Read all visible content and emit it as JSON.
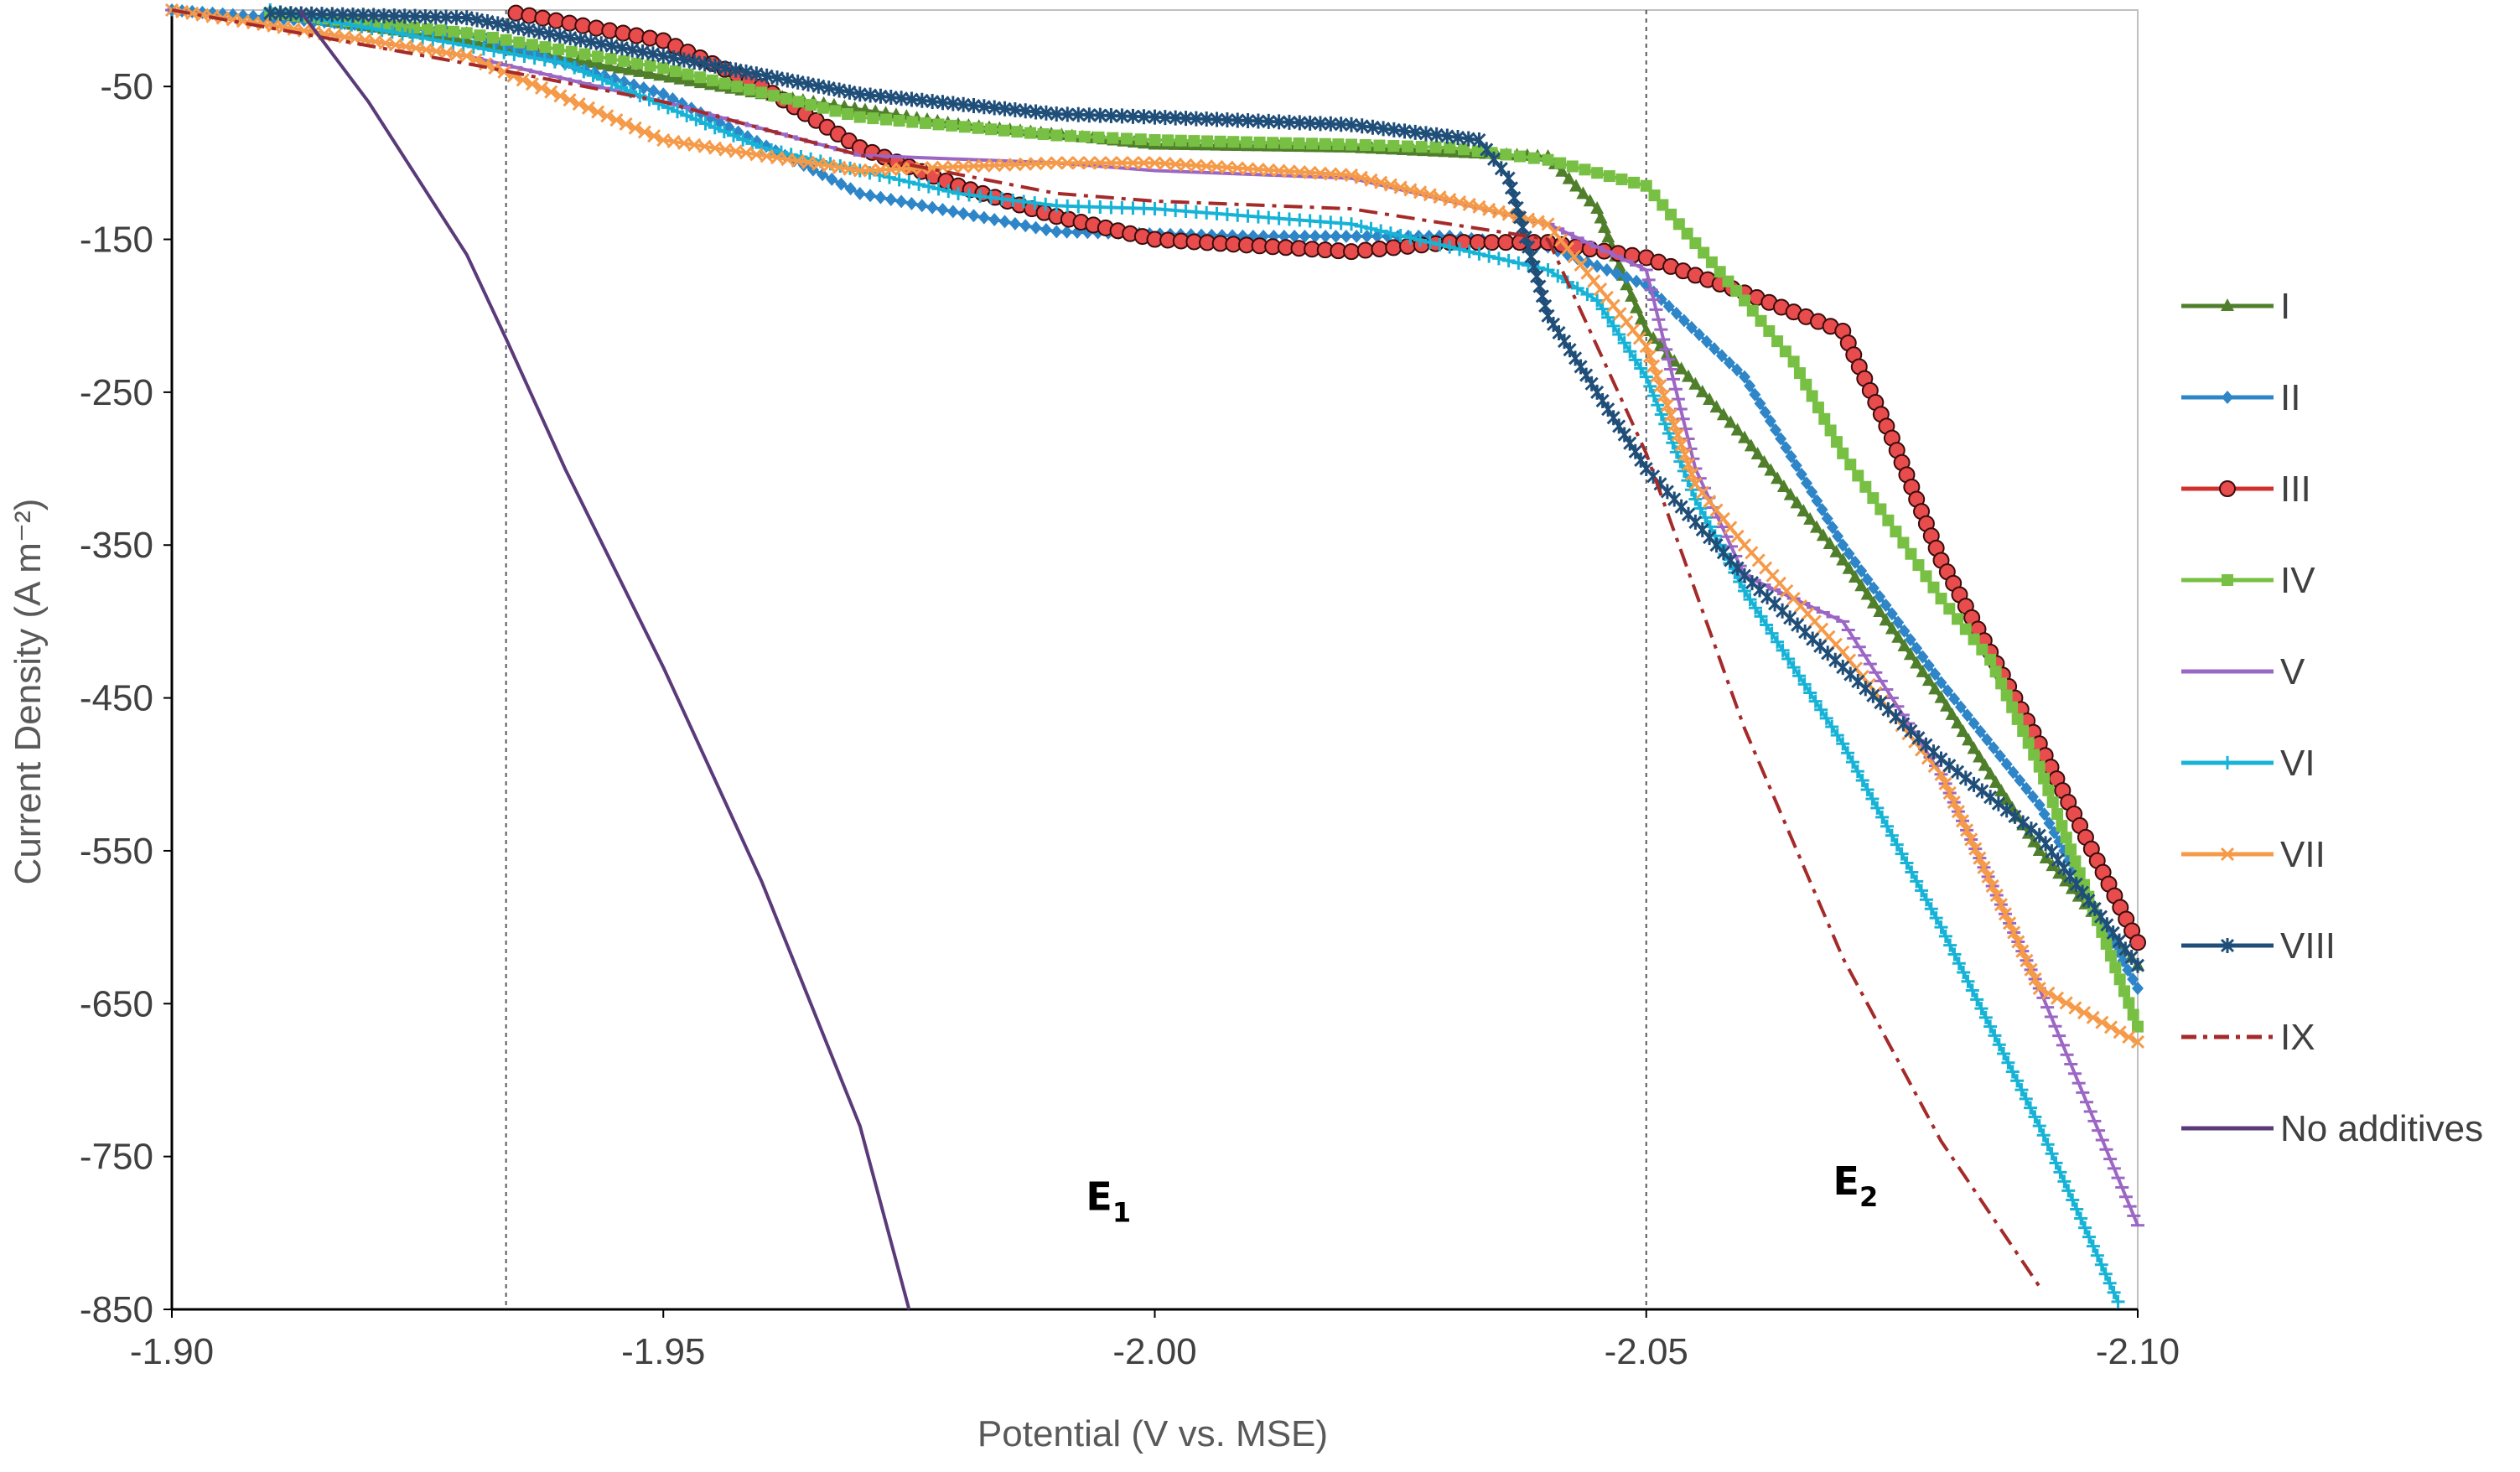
{
  "chart_data": {
    "type": "line",
    "title": "",
    "xlabel": "Potential (V vs. MSE)",
    "ylabel": "Current Density (A m⁻²)",
    "xlim": [
      -1.9,
      -2.1
    ],
    "ylim": [
      -850,
      0
    ],
    "x_ticks": [
      "-1.90",
      "-1.95",
      "-2.00",
      "-2.05",
      "-2.10"
    ],
    "y_ticks": [
      "-50",
      "-150",
      "-250",
      "-350",
      "-450",
      "-550",
      "-650",
      "-750",
      "-850"
    ],
    "reference_lines": [
      {
        "axis": "x",
        "value": -1.934,
        "style": "dotted",
        "label": "E1"
      },
      {
        "axis": "x",
        "value": -2.05,
        "style": "dotted",
        "label": "E2"
      }
    ],
    "annotations": [
      {
        "text": "E",
        "sub": "1",
        "x": -1.993,
        "y": -785
      },
      {
        "text": "E",
        "sub": "2",
        "x": -2.069,
        "y": -775
      }
    ],
    "legend_position": "right",
    "series": [
      {
        "name": "I",
        "color": "#4f7f2a",
        "marker": "triangle",
        "x": [
          -1.91,
          -1.93,
          -1.96,
          -1.98,
          -2.0,
          -2.02,
          -2.04,
          -2.045,
          -2.048,
          -2.05,
          -2.06,
          -2.07,
          -2.08,
          -2.09,
          -2.1
        ],
        "y": [
          -2,
          -20,
          -55,
          -75,
          -88,
          -90,
          -96,
          -130,
          -180,
          -210,
          -280,
          -360,
          -450,
          -550,
          -625
        ]
      },
      {
        "name": "II",
        "color": "#2e86c8",
        "marker": "diamond",
        "x": [
          -1.9,
          -1.93,
          -1.95,
          -1.97,
          -1.99,
          -2.01,
          -2.03,
          -2.04,
          -2.05,
          -2.06,
          -2.07,
          -2.08,
          -2.09,
          -2.1
        ],
        "y": [
          0,
          -15,
          -55,
          -120,
          -145,
          -148,
          -148,
          -155,
          -180,
          -240,
          -350,
          -440,
          -520,
          -640
        ]
      },
      {
        "name": "III",
        "color": "#d0312d",
        "marker": "circle",
        "x": [
          -1.935,
          -1.95,
          -1.96,
          -1.97,
          -1.98,
          -1.99,
          -2.0,
          -2.02,
          -2.03,
          -2.04,
          -2.05,
          -2.06,
          -2.07,
          -2.075,
          -2.08,
          -2.09,
          -2.1
        ],
        "y": [
          -2,
          -20,
          -50,
          -90,
          -115,
          -135,
          -150,
          -158,
          -152,
          -152,
          -162,
          -185,
          -210,
          -280,
          -360,
          -480,
          -610
        ]
      },
      {
        "name": "IV",
        "color": "#77c043",
        "marker": "square",
        "x": [
          -1.91,
          -1.93,
          -1.95,
          -1.97,
          -1.99,
          -2.0,
          -2.02,
          -2.03,
          -2.04,
          -2.05,
          -2.06,
          -2.065,
          -2.07,
          -2.08,
          -2.085,
          -2.09,
          -2.1
        ],
        "y": [
          -2,
          -15,
          -38,
          -70,
          -82,
          -85,
          -88,
          -90,
          -98,
          -115,
          -190,
          -230,
          -290,
          -385,
          -425,
          -495,
          -665
        ]
      },
      {
        "name": "V",
        "color": "#9b66c4",
        "marker": "dash",
        "x": [
          -1.9,
          -1.93,
          -1.95,
          -1.97,
          -1.99,
          -2.0,
          -2.02,
          -2.04,
          -2.05,
          -2.055,
          -2.06,
          -2.07,
          -2.08,
          -2.09,
          -2.1
        ],
        "y": [
          0,
          -30,
          -60,
          -95,
          -100,
          -105,
          -110,
          -140,
          -170,
          -300,
          -370,
          -400,
          -500,
          -640,
          -795
        ]
      },
      {
        "name": "VI",
        "color": "#17b3d6",
        "marker": "plus",
        "x": [
          -1.91,
          -1.94,
          -1.96,
          -1.98,
          -1.99,
          -2.0,
          -2.02,
          -2.04,
          -2.045,
          -2.05,
          -2.055,
          -2.06,
          -2.07,
          -2.08,
          -2.09,
          -2.098
        ],
        "y": [
          0,
          -35,
          -90,
          -120,
          -128,
          -130,
          -140,
          -170,
          -190,
          -240,
          -320,
          -380,
          -480,
          -600,
          -730,
          -845
        ]
      },
      {
        "name": "VII",
        "color": "#f59a48",
        "marker": "x",
        "x": [
          -1.9,
          -1.93,
          -1.95,
          -1.97,
          -1.99,
          -2.0,
          -2.02,
          -2.04,
          -2.05,
          -2.055,
          -2.06,
          -2.07,
          -2.08,
          -2.09,
          -2.1
        ],
        "y": [
          0,
          -30,
          -85,
          -105,
          -100,
          -100,
          -108,
          -140,
          -220,
          -310,
          -350,
          -420,
          -500,
          -640,
          -675
        ]
      },
      {
        "name": "VIII",
        "color": "#1f4e79",
        "marker": "star",
        "x": [
          -1.91,
          -1.93,
          -1.95,
          -1.97,
          -1.99,
          -2.0,
          -2.02,
          -2.033,
          -2.036,
          -2.04,
          -2.05,
          -2.06,
          -2.07,
          -2.08,
          -2.09,
          -2.1
        ],
        "y": [
          -2,
          -5,
          -30,
          -55,
          -68,
          -70,
          -75,
          -85,
          -110,
          -200,
          -300,
          -370,
          -430,
          -490,
          -540,
          -625
        ]
      },
      {
        "name": "IX",
        "color": "#a52a2a",
        "marker": "none",
        "dash": "dashdot",
        "x": [
          -1.9,
          -1.93,
          -1.95,
          -1.97,
          -1.99,
          -2.0,
          -2.02,
          -2.04,
          -2.05,
          -2.06,
          -2.07,
          -2.08,
          -2.09
        ],
        "y": [
          0,
          -35,
          -60,
          -95,
          -120,
          -125,
          -130,
          -150,
          -290,
          -470,
          -620,
          -740,
          -835
        ]
      },
      {
        "name": "No additives",
        "color": "#5b3a7a",
        "marker": "none",
        "x": [
          -1.913,
          -1.92,
          -1.93,
          -1.934,
          -1.94,
          -1.95,
          -1.96,
          -1.97,
          -1.975
        ],
        "y": [
          0,
          -60,
          -160,
          -215,
          -300,
          -430,
          -570,
          -730,
          -850
        ]
      }
    ]
  }
}
